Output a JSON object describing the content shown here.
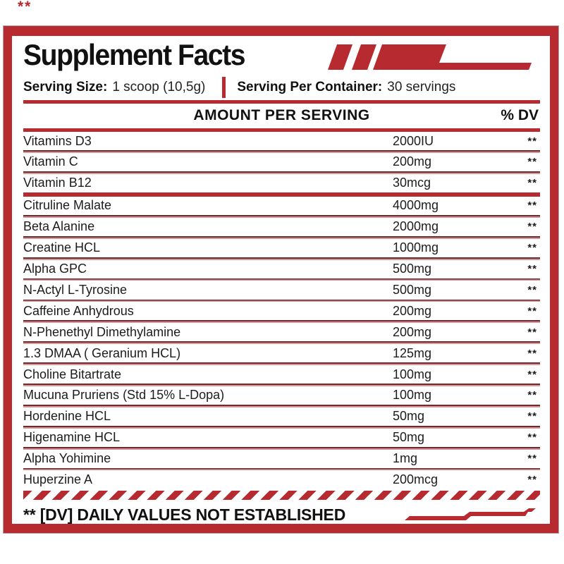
{
  "page": {
    "corner_mark": "**"
  },
  "header": {
    "title": "Supplement Facts"
  },
  "serving": {
    "size_label": "Serving Size:",
    "size_value": "1 scoop (10,5g)",
    "container_label": "Serving Per Container:",
    "container_value": "30 servings"
  },
  "table": {
    "amount_header": "AMOUNT PER SERVING",
    "dv_header": "% DV",
    "section_break_after_index": 2,
    "rows": [
      {
        "name": "Vitamins D3",
        "amount": "2000IU",
        "dv": "**"
      },
      {
        "name": "Vitamin C",
        "amount": "200mg",
        "dv": "**"
      },
      {
        "name": "Vitamin B12",
        "amount": "30mcg",
        "dv": "**"
      },
      {
        "name": "Citruline Malate",
        "amount": "4000mg",
        "dv": "**"
      },
      {
        "name": "Beta Alanine",
        "amount": "2000mg",
        "dv": "**"
      },
      {
        "name": "Creatine HCL",
        "amount": "1000mg",
        "dv": "**"
      },
      {
        "name": "Alpha GPC",
        "amount": "500mg",
        "dv": "**"
      },
      {
        "name": "N-Actyl L-Tyrosine",
        "amount": "500mg",
        "dv": "**"
      },
      {
        "name": "Caffeine Anhydrous",
        "amount": "200mg",
        "dv": "**"
      },
      {
        "name": "N-Phenethyl Dimethylamine",
        "amount": "200mg",
        "dv": "**"
      },
      {
        "name": "1.3 DMAA ( Geranium HCL)",
        "amount": "125mg",
        "dv": "**"
      },
      {
        "name": "Choline Bitartrate",
        "amount": "100mg",
        "dv": "**"
      },
      {
        "name": "Mucuna Pruriens (Std 15% L-Dopa)",
        "amount": "100mg",
        "dv": "**"
      },
      {
        "name": "Hordenine HCL",
        "amount": "50mg",
        "dv": "**"
      },
      {
        "name": "Higenamine HCL",
        "amount": "50mg",
        "dv": "**"
      },
      {
        "name": "Alpha Yohimine",
        "amount": "1mg",
        "dv": "**"
      },
      {
        "name": "Huperzine A",
        "amount": "200mcg",
        "dv": "**"
      }
    ]
  },
  "footer": {
    "note": "** [DV] DAILY VALUES NOT ESTABLISHED"
  },
  "colors": {
    "accent_red": "#b62a30",
    "separator_dark": "#6e2b2e",
    "separator_light": "#d5989a"
  }
}
